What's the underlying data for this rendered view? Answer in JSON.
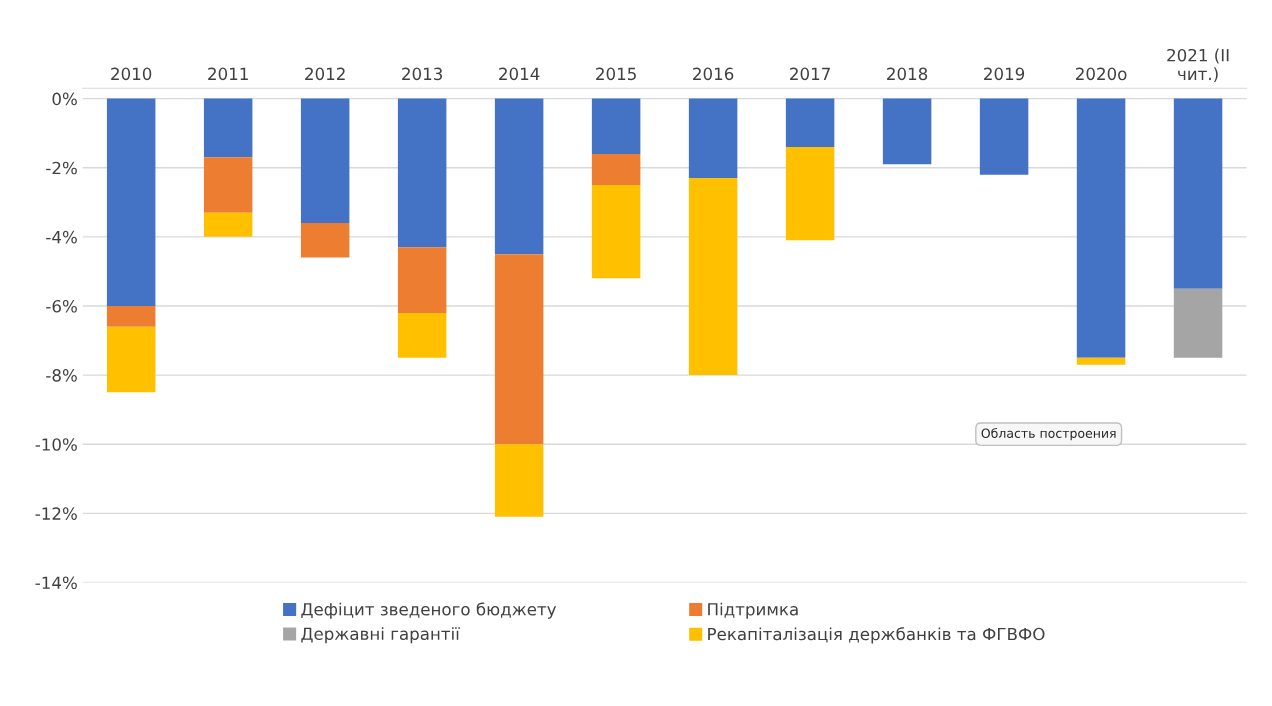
{
  "chart_data": {
    "type": "bar",
    "stacked": true,
    "categories": [
      "2010",
      "2011",
      "2012",
      "2013",
      "2014",
      "2015",
      "2016",
      "2017",
      "2018",
      "2019",
      "2020о",
      "2021 (ІІ\nчит.)"
    ],
    "series": [
      {
        "name": "Дефіцит зведеного бюджету",
        "color": "#4472c4",
        "values": [
          -6.0,
          -1.7,
          -3.6,
          -4.3,
          -4.5,
          -1.6,
          -2.3,
          -1.4,
          -1.9,
          -2.2,
          -7.5,
          -5.5
        ]
      },
      {
        "name": "Підтримка",
        "color": "#ed7d31",
        "values": [
          -0.6,
          -1.6,
          -1.0,
          -1.9,
          -5.5,
          -0.9,
          null,
          null,
          null,
          null,
          null,
          null
        ]
      },
      {
        "name": "Державні гарантії",
        "color": "#a5a5a5",
        "values": [
          null,
          null,
          null,
          null,
          null,
          null,
          null,
          null,
          null,
          null,
          null,
          -2.0
        ]
      },
      {
        "name": "Рекапіталізація держбанків та ФГВФО",
        "color": "#ffc000",
        "values": [
          -1.9,
          -0.7,
          null,
          -1.3,
          -2.1,
          -2.7,
          -5.7,
          -2.7,
          null,
          null,
          -0.2,
          null
        ]
      }
    ],
    "ylim": [
      -14,
      0.3
    ],
    "yticks": [
      {
        "value": 0,
        "label": "0%"
      },
      {
        "value": -2,
        "label": "-2%"
      },
      {
        "value": -4,
        "label": "-4%"
      },
      {
        "value": -6,
        "label": "-6%"
      },
      {
        "value": -8,
        "label": "-8%"
      },
      {
        "value": -10,
        "label": "-10%"
      },
      {
        "value": -12,
        "label": "-12%"
      },
      {
        "value": -14,
        "label": "-14%"
      }
    ],
    "grid": "y",
    "legend": "bottom",
    "annotations": [
      "Область построения"
    ]
  }
}
